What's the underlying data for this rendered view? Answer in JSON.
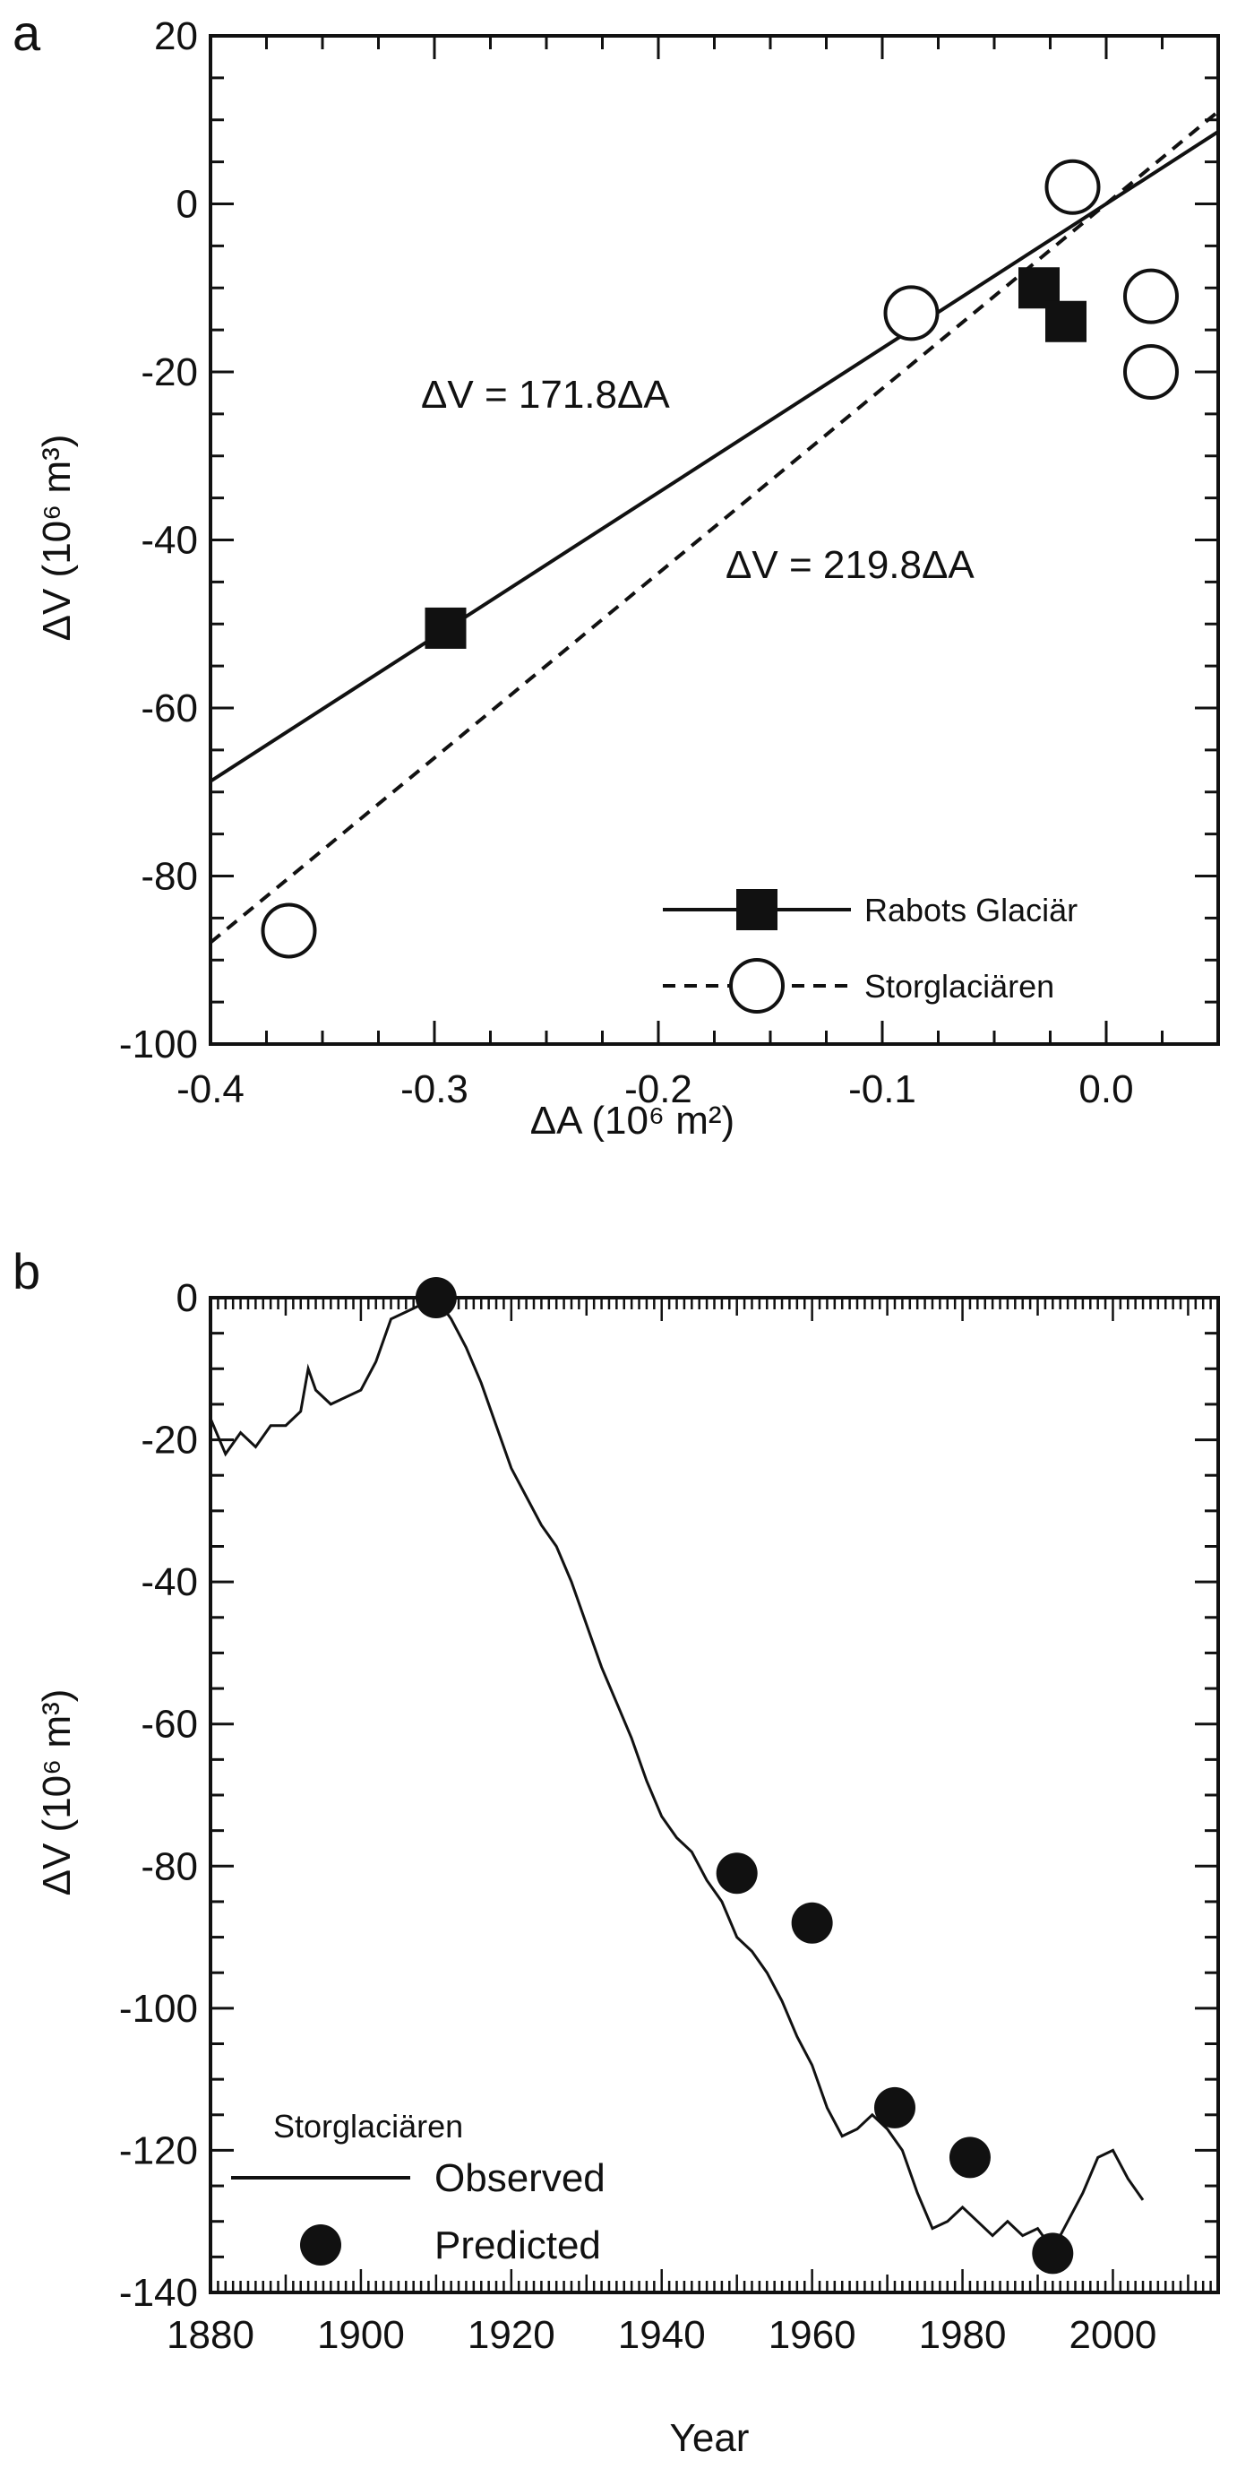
{
  "chart_data": [
    {
      "panel_label": "a",
      "type": "scatter",
      "xlabel": "ΔA (10⁶ m²)",
      "ylabel": "ΔV (10⁶ m³)",
      "xlim": [
        -0.4,
        0.05
      ],
      "ylim": [
        -100,
        20
      ],
      "x_ticks": [
        -0.4,
        -0.3,
        -0.2,
        -0.1,
        0.0
      ],
      "x_tick_labels": [
        "-0.4",
        "-0.3",
        "-0.2",
        "-0.1",
        "0.0"
      ],
      "y_ticks": [
        20,
        0,
        -20,
        -40,
        -60,
        -80,
        -100
      ],
      "y_tick_labels": [
        "20",
        "0",
        "-20",
        "-40",
        "-60",
        "-80",
        "-100"
      ],
      "series": [
        {
          "name": "Rabots Glaciär",
          "marker": "filled-square",
          "line": "solid",
          "slope": 171.8,
          "equation": "ΔV = 171.8ΔA",
          "points": [
            [
              -0.295,
              -50.5
            ],
            [
              -0.03,
              -10
            ],
            [
              -0.018,
              -14
            ]
          ]
        },
        {
          "name": "Storglaciären",
          "marker": "open-circle",
          "line": "dashed",
          "slope": 219.8,
          "equation": "ΔV = 219.8ΔA",
          "points": [
            [
              -0.365,
              -86.5
            ],
            [
              -0.087,
              -13
            ],
            [
              -0.015,
              2
            ],
            [
              0.02,
              -11
            ],
            [
              0.02,
              -20
            ]
          ]
        }
      ],
      "legend_position": "bottom-right"
    },
    {
      "panel_label": "b",
      "type": "line",
      "xlabel": "Year",
      "ylabel": "ΔV (10⁶ m³)",
      "xlim": [
        1880,
        2014
      ],
      "ylim": [
        -140,
        0
      ],
      "x_ticks": [
        1880,
        1900,
        1920,
        1940,
        1960,
        1980,
        2000
      ],
      "x_tick_labels": [
        "1880",
        "1900",
        "1920",
        "1940",
        "1960",
        "1980",
        "2000"
      ],
      "y_ticks": [
        0,
        -20,
        -40,
        -60,
        -80,
        -100,
        -120,
        -140
      ],
      "y_tick_labels": [
        "0",
        "-20",
        "-40",
        "-60",
        "-80",
        "-100",
        "-120",
        "-140"
      ],
      "legend_title": "Storglaciären",
      "legend_position": "bottom-left",
      "series": [
        {
          "name": "Observed",
          "style": "line",
          "x": [
            1880,
            1882,
            1884,
            1886,
            1888,
            1890,
            1892,
            1893,
            1894,
            1896,
            1898,
            1900,
            1902,
            1903,
            1904,
            1906,
            1908,
            1910,
            1912,
            1914,
            1916,
            1918,
            1920,
            1922,
            1924,
            1926,
            1928,
            1930,
            1932,
            1934,
            1936,
            1938,
            1940,
            1942,
            1944,
            1946,
            1948,
            1950,
            1952,
            1954,
            1956,
            1958,
            1960,
            1962,
            1964,
            1966,
            1968,
            1970,
            1972,
            1974,
            1976,
            1978,
            1980,
            1982,
            1984,
            1986,
            1988,
            1990,
            1992,
            1994,
            1996,
            1998,
            2000,
            2002,
            2004
          ],
          "y": [
            -17,
            -22,
            -19,
            -21,
            -18,
            -18,
            -16,
            -10,
            -13,
            -15,
            -14,
            -13,
            -9,
            -6,
            -3,
            -2,
            -1,
            0,
            -3,
            -7,
            -12,
            -18,
            -24,
            -28,
            -32,
            -35,
            -40,
            -46,
            -52,
            -57,
            -62,
            -68,
            -73,
            -76,
            -78,
            -82,
            -85,
            -90,
            -92,
            -95,
            -99,
            -104,
            -108,
            -114,
            -118,
            -117,
            -115,
            -117,
            -120,
            -126,
            -131,
            -130,
            -128,
            -130,
            -132,
            -130,
            -132,
            -131,
            -134,
            -130,
            -126,
            -121,
            -120,
            -124,
            -127
          ]
        },
        {
          "name": "Predicted",
          "style": "filled-circle",
          "x": [
            1910,
            1950,
            1960,
            1971,
            1981,
            1992
          ],
          "y": [
            0,
            -81,
            -88,
            -114,
            -121,
            -134.5
          ]
        }
      ]
    }
  ]
}
